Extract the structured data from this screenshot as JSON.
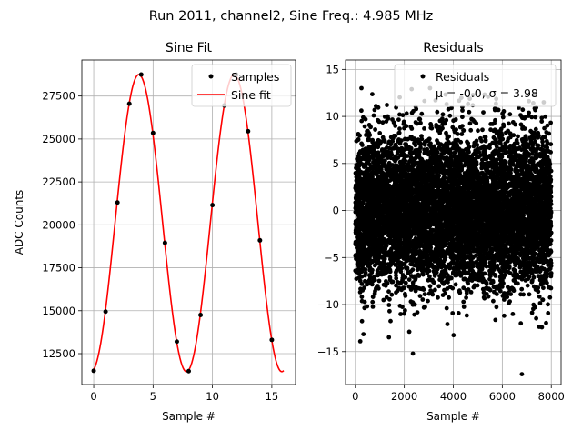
{
  "suptitle": "Run 2011, channel2, Sine Freq.: 4.985 MHz",
  "colors": {
    "samples": "#000000",
    "fit": "#ff0000",
    "residuals": "#000000",
    "grid": "#b0b0b0"
  },
  "chart_data": [
    {
      "type": "line",
      "title": "Sine Fit",
      "xlabel": "Sample #",
      "ylabel": "ADC Counts",
      "xlim": [
        -1,
        17
      ],
      "ylim": [
        10700,
        29600
      ],
      "xticks": [
        0,
        5,
        10,
        15
      ],
      "yticks": [
        12500,
        15000,
        17500,
        20000,
        22500,
        25000,
        27500
      ],
      "grid": true,
      "legend_position": "top-right",
      "series": [
        {
          "name": "Samples",
          "style": "markers",
          "x": [
            0,
            1,
            2,
            3,
            4,
            5,
            6,
            7,
            8,
            9,
            10,
            11,
            12,
            13,
            14,
            15
          ],
          "y": [
            11500,
            14950,
            21300,
            27050,
            28750,
            25350,
            18950,
            13200,
            11480,
            14750,
            21150,
            26950,
            28750,
            25450,
            19100,
            13300
          ]
        },
        {
          "name": "Sine fit",
          "style": "line",
          "model": {
            "offset": 20100,
            "amplitude": 8650,
            "period_samples": 8.03,
            "phase_sample": 3.8,
            "x_range": [
              0,
              16
            ]
          }
        }
      ]
    },
    {
      "type": "scatter",
      "title": "Residuals",
      "xlabel": "Sample #",
      "xlim": [
        -400,
        8400
      ],
      "ylim": [
        -18.5,
        16
      ],
      "xticks": [
        0,
        2000,
        4000,
        6000,
        8000
      ],
      "yticks": [
        -15,
        -10,
        -5,
        0,
        5,
        10,
        15
      ],
      "grid": true,
      "legend_position": "top-right",
      "series": [
        {
          "name": "Residuals",
          "legend_line2": "μ = -0.0, σ = 3.98",
          "mean": -0.0,
          "std": 3.98,
          "n_points": 8000,
          "x_range": [
            0,
            8000
          ],
          "outliers": [
            {
              "x": 200,
              "y": -13.9
            },
            {
              "x": 2350,
              "y": -15.2
            },
            {
              "x": 6800,
              "y": -17.4
            },
            {
              "x": 250,
              "y": 13.0
            },
            {
              "x": 2300,
              "y": 12.9
            },
            {
              "x": 3050,
              "y": 13.0
            }
          ]
        }
      ]
    }
  ]
}
